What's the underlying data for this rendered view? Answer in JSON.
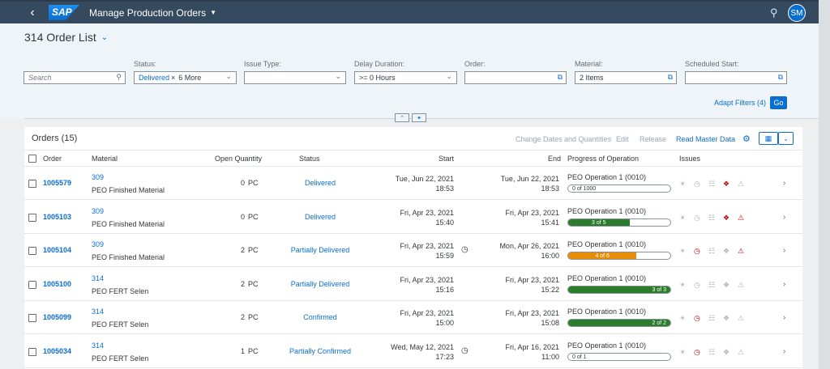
{
  "shell": {
    "app_title": "Manage Production Orders",
    "logo": "SAP",
    "avatar": "SM"
  },
  "variant": {
    "title": "314 Order List"
  },
  "filters": {
    "search_placeholder": "Search",
    "status": {
      "label": "Status:",
      "token": "Delivered",
      "more": "6 More"
    },
    "issue_type": {
      "label": "Issue Type:",
      "value": ""
    },
    "delay_duration": {
      "label": "Delay Duration:",
      "value": ">= 0 Hours"
    },
    "order": {
      "label": "Order:",
      "value": ""
    },
    "material": {
      "label": "Material:",
      "value": "2 Items"
    },
    "scheduled_start": {
      "label": "Scheduled Start:",
      "value": ""
    },
    "adapt_label": "Adapt Filters (4)",
    "go_label": "Go"
  },
  "table": {
    "title": "Orders (15)",
    "toolbar": {
      "change_dates": "Change Dates and Quantities",
      "edit": "Edit",
      "release": "Release",
      "read_master": "Read Master Data"
    },
    "columns": {
      "order": "Order",
      "material": "Material",
      "open_qty": "Open Quantity",
      "status": "Status",
      "start": "Start",
      "end": "End",
      "progress": "Progress of Operation",
      "issues": "Issues"
    },
    "rows": [
      {
        "order": "1005579",
        "mat_no": "309",
        "mat_desc": "PEO Finished Material",
        "qty": "0",
        "unit": "PC",
        "status": "Delivered",
        "start_date": "Tue, Jun 22, 2021",
        "start_time": "18:53",
        "end_date": "Tue, Jun 22, 2021",
        "end_time": "18:53",
        "op": "PEO Operation 1 (0010)",
        "progress_text": "0 of 1000",
        "progress": 0,
        "progress_color": "#ffffff",
        "delay": false,
        "issues": [
          "gray",
          "gray",
          "gray",
          "red",
          "gray"
        ]
      },
      {
        "order": "1005103",
        "mat_no": "309",
        "mat_desc": "PEO Finished Material",
        "qty": "0",
        "unit": "PC",
        "status": "Delivered",
        "start_date": "Fri, Apr 23, 2021",
        "start_time": "15:40",
        "end_date": "Fri, Apr 23, 2021",
        "end_time": "15:41",
        "op": "PEO Operation 1 (0010)",
        "progress_text": "3 of 5",
        "progress": 0.6,
        "progress_color": "#2b7d2b",
        "delay": false,
        "issues": [
          "gray",
          "gray",
          "gray",
          "red",
          "red"
        ]
      },
      {
        "order": "1005104",
        "mat_no": "309",
        "mat_desc": "PEO Finished Material",
        "qty": "2",
        "unit": "PC",
        "status": "Partially Delivered",
        "start_date": "Fri, Apr 23, 2021",
        "start_time": "15:59",
        "end_date": "Mon, Apr 26, 2021",
        "end_time": "16:00",
        "op": "PEO Operation 1 (0010)",
        "progress_text": "4 of 6",
        "progress": 0.667,
        "progress_color": "#e78c07",
        "delay": true,
        "issues": [
          "gray",
          "red",
          "gray",
          "gray",
          "red"
        ]
      },
      {
        "order": "1005100",
        "mat_no": "314",
        "mat_desc": "PEO FERT Selen",
        "qty": "2",
        "unit": "PC",
        "status": "Partially Delivered",
        "start_date": "Fri, Apr 23, 2021",
        "start_time": "15:16",
        "end_date": "Fri, Apr 23, 2021",
        "end_time": "15:22",
        "op": "PEO Operation 1 (0010)",
        "progress_text": "3 of 3",
        "progress": 1,
        "progress_color": "#2b7d2b",
        "delay": false,
        "issues": [
          "gray",
          "gray",
          "gray",
          "gray",
          "gray"
        ]
      },
      {
        "order": "1005099",
        "mat_no": "314",
        "mat_desc": "PEO FERT Selen",
        "qty": "2",
        "unit": "PC",
        "status": "Confirmed",
        "start_date": "Fri, Apr 23, 2021",
        "start_time": "15:00",
        "end_date": "Fri, Apr 23, 2021",
        "end_time": "15:08",
        "op": "PEO Operation 1 (0010)",
        "progress_text": "2 of 2",
        "progress": 1,
        "progress_color": "#2b7d2b",
        "delay": false,
        "issues": [
          "gray",
          "red",
          "gray",
          "gray",
          "gray"
        ]
      },
      {
        "order": "1005034",
        "mat_no": "314",
        "mat_desc": "PEO FERT Selen",
        "qty": "1",
        "unit": "PC",
        "status": "Partially Confirmed",
        "start_date": "Wed, May 12, 2021",
        "start_time": "17:23",
        "end_date": "Fri, Apr 16, 2021",
        "end_time": "11:00",
        "op": "PEO Operation 1 (0010)",
        "progress_text": "0 of 1",
        "progress": 0,
        "progress_color": "#ffffff",
        "delay": true,
        "issues": [
          "gray",
          "red",
          "gray",
          "gray",
          "gray"
        ]
      }
    ]
  },
  "icons": {
    "issue_types": [
      "quality-issue-icon",
      "time-issue-icon",
      "component-issue-icon",
      "resource-issue-icon",
      "quantity-issue-icon"
    ]
  }
}
